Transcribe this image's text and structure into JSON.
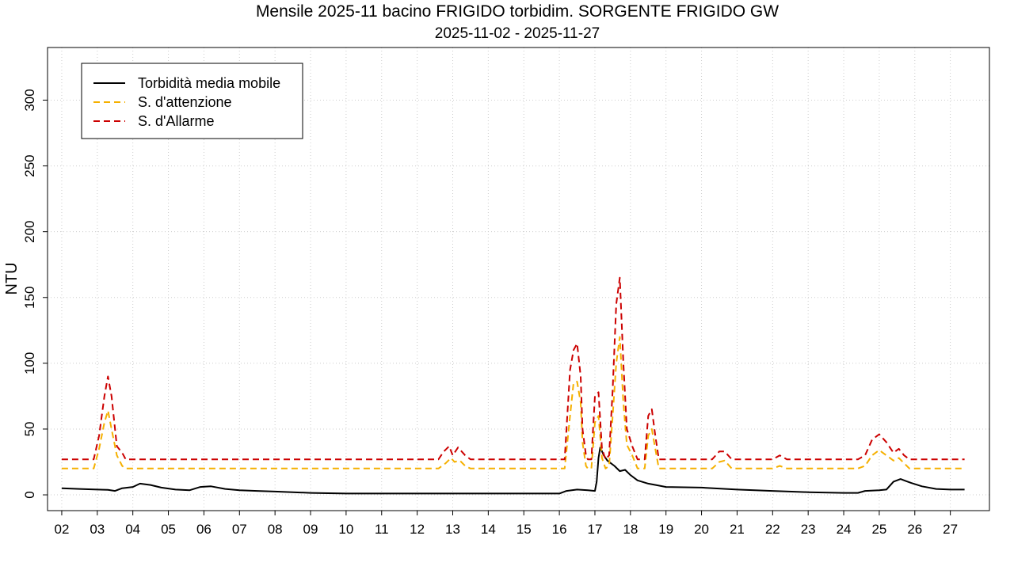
{
  "chart_data": {
    "type": "line",
    "title": "Mensile 2025-11 bacino FRIGIDO torbidim. SORGENTE FRIGIDO GW",
    "subtitle": "2025-11-02 - 2025-11-27",
    "ylabel": "NTU",
    "xlabel": "",
    "xlim": [
      1.6,
      28.1
    ],
    "ylim": [
      -12,
      340
    ],
    "x_ticks": [
      2,
      3,
      4,
      5,
      6,
      7,
      8,
      9,
      10,
      11,
      12,
      13,
      14,
      15,
      16,
      17,
      18,
      19,
      20,
      21,
      22,
      23,
      24,
      25,
      26,
      27
    ],
    "x_tick_labels": [
      "02",
      "03",
      "04",
      "05",
      "06",
      "07",
      "08",
      "09",
      "10",
      "11",
      "12",
      "13",
      "14",
      "15",
      "16",
      "17",
      "18",
      "19",
      "20",
      "21",
      "22",
      "23",
      "24",
      "25",
      "26",
      "27"
    ],
    "y_ticks": [
      0,
      50,
      100,
      150,
      200,
      250,
      300
    ],
    "y_tick_labels": [
      "0",
      "50",
      "100",
      "150",
      "200",
      "250",
      "300"
    ],
    "grid": true,
    "legend_position": "top-left",
    "series": [
      {
        "name": "Torbidità media mobile",
        "color": "#000000",
        "dash": "solid",
        "points": [
          [
            2,
            5
          ],
          [
            2.5,
            4.5
          ],
          [
            3,
            4
          ],
          [
            3.3,
            3.8
          ],
          [
            3.5,
            3
          ],
          [
            3.7,
            5
          ],
          [
            4,
            6
          ],
          [
            4.2,
            8.5
          ],
          [
            4.5,
            7.5
          ],
          [
            4.8,
            5.5
          ],
          [
            5.2,
            4
          ],
          [
            5.6,
            3.5
          ],
          [
            5.9,
            6
          ],
          [
            6.2,
            6.5
          ],
          [
            6.6,
            4.5
          ],
          [
            7,
            3.5
          ],
          [
            7.5,
            3
          ],
          [
            8,
            2.5
          ],
          [
            9,
            1.5
          ],
          [
            10,
            1
          ],
          [
            12,
            1
          ],
          [
            14,
            1
          ],
          [
            16,
            1
          ],
          [
            16.2,
            3
          ],
          [
            16.5,
            4
          ],
          [
            16.8,
            3.5
          ],
          [
            17,
            3
          ],
          [
            17.05,
            10
          ],
          [
            17.1,
            28
          ],
          [
            17.15,
            36
          ],
          [
            17.25,
            30
          ],
          [
            17.35,
            26
          ],
          [
            17.45,
            24
          ],
          [
            17.55,
            22
          ],
          [
            17.7,
            18
          ],
          [
            17.85,
            19
          ],
          [
            18,
            15
          ],
          [
            18.2,
            11
          ],
          [
            18.5,
            8.5
          ],
          [
            18.8,
            7
          ],
          [
            19,
            6
          ],
          [
            20,
            5.5
          ],
          [
            21,
            4
          ],
          [
            22,
            3
          ],
          [
            23,
            2
          ],
          [
            24,
            1.5
          ],
          [
            24.4,
            1.5
          ],
          [
            24.6,
            3
          ],
          [
            25,
            3.5
          ],
          [
            25.2,
            4
          ],
          [
            25.4,
            10
          ],
          [
            25.6,
            12
          ],
          [
            25.9,
            9
          ],
          [
            26.2,
            6.5
          ],
          [
            26.6,
            4.5
          ],
          [
            27,
            4
          ],
          [
            27.4,
            4
          ]
        ]
      },
      {
        "name": "S. d'attenzione",
        "color": "#f5b000",
        "dash": "dashed",
        "points": [
          [
            2,
            20
          ],
          [
            2.6,
            20
          ],
          [
            2.9,
            20
          ],
          [
            3.05,
            35
          ],
          [
            3.2,
            55
          ],
          [
            3.3,
            64
          ],
          [
            3.4,
            50
          ],
          [
            3.55,
            30
          ],
          [
            3.7,
            22
          ],
          [
            3.8,
            20
          ],
          [
            4,
            20
          ],
          [
            12.6,
            20
          ],
          [
            12.8,
            24
          ],
          [
            12.95,
            28
          ],
          [
            13.05,
            25
          ],
          [
            13.2,
            26
          ],
          [
            13.35,
            22
          ],
          [
            13.5,
            20
          ],
          [
            16,
            20
          ],
          [
            16.15,
            20
          ],
          [
            16.3,
            60
          ],
          [
            16.4,
            85
          ],
          [
            16.5,
            86
          ],
          [
            16.6,
            70
          ],
          [
            16.65,
            40
          ],
          [
            16.75,
            22
          ],
          [
            16.8,
            20
          ],
          [
            16.9,
            20
          ],
          [
            17,
            55
          ],
          [
            17.1,
            60
          ],
          [
            17.2,
            28
          ],
          [
            17.3,
            20
          ],
          [
            17.4,
            22
          ],
          [
            17.5,
            60
          ],
          [
            17.6,
            100
          ],
          [
            17.7,
            120
          ],
          [
            17.8,
            70
          ],
          [
            17.9,
            38
          ],
          [
            18.05,
            30
          ],
          [
            18.2,
            20
          ],
          [
            18.4,
            20
          ],
          [
            18.5,
            45
          ],
          [
            18.6,
            50
          ],
          [
            18.7,
            35
          ],
          [
            18.8,
            20
          ],
          [
            20.3,
            20
          ],
          [
            20.5,
            25
          ],
          [
            20.65,
            26
          ],
          [
            20.85,
            20
          ],
          [
            22,
            20
          ],
          [
            22.2,
            22
          ],
          [
            22.4,
            20
          ],
          [
            23.7,
            20
          ],
          [
            24.1,
            20
          ],
          [
            24.4,
            20
          ],
          [
            24.6,
            22
          ],
          [
            24.8,
            30
          ],
          [
            25,
            34
          ],
          [
            25.2,
            30
          ],
          [
            25.4,
            26
          ],
          [
            25.55,
            28
          ],
          [
            25.7,
            24
          ],
          [
            25.85,
            20
          ],
          [
            26.5,
            20
          ],
          [
            27.4,
            20
          ]
        ]
      },
      {
        "name": "S. d'Allarme",
        "color": "#cc0000",
        "dash": "dashed",
        "points": [
          [
            2,
            27
          ],
          [
            2.6,
            27
          ],
          [
            2.9,
            27
          ],
          [
            3.05,
            45
          ],
          [
            3.2,
            75
          ],
          [
            3.3,
            90
          ],
          [
            3.4,
            75
          ],
          [
            3.55,
            37
          ],
          [
            3.7,
            32
          ],
          [
            3.8,
            27
          ],
          [
            4,
            27
          ],
          [
            12.6,
            27
          ],
          [
            12.75,
            33
          ],
          [
            12.9,
            37
          ],
          [
            13.0,
            30
          ],
          [
            13.15,
            36
          ],
          [
            13.35,
            30
          ],
          [
            13.5,
            27
          ],
          [
            16,
            27
          ],
          [
            16.15,
            27
          ],
          [
            16.3,
            95
          ],
          [
            16.4,
            110
          ],
          [
            16.5,
            115
          ],
          [
            16.6,
            90
          ],
          [
            16.65,
            50
          ],
          [
            16.75,
            30
          ],
          [
            16.8,
            27
          ],
          [
            16.9,
            27
          ],
          [
            17,
            75
          ],
          [
            17.1,
            78
          ],
          [
            17.2,
            35
          ],
          [
            17.3,
            27
          ],
          [
            17.4,
            30
          ],
          [
            17.5,
            80
          ],
          [
            17.6,
            145
          ],
          [
            17.7,
            165
          ],
          [
            17.8,
            100
          ],
          [
            17.9,
            50
          ],
          [
            18.05,
            37
          ],
          [
            18.2,
            27
          ],
          [
            18.4,
            27
          ],
          [
            18.5,
            60
          ],
          [
            18.6,
            65
          ],
          [
            18.7,
            45
          ],
          [
            18.8,
            27
          ],
          [
            20.3,
            27
          ],
          [
            20.5,
            33
          ],
          [
            20.65,
            33
          ],
          [
            20.85,
            27
          ],
          [
            22,
            27
          ],
          [
            22.2,
            30
          ],
          [
            22.4,
            27
          ],
          [
            23.7,
            27
          ],
          [
            24.1,
            27
          ],
          [
            24.4,
            27
          ],
          [
            24.6,
            30
          ],
          [
            24.8,
            42
          ],
          [
            25,
            46
          ],
          [
            25.2,
            40
          ],
          [
            25.4,
            32
          ],
          [
            25.55,
            35
          ],
          [
            25.7,
            30
          ],
          [
            25.85,
            27
          ],
          [
            26.5,
            27
          ],
          [
            27.4,
            27
          ]
        ]
      }
    ]
  }
}
